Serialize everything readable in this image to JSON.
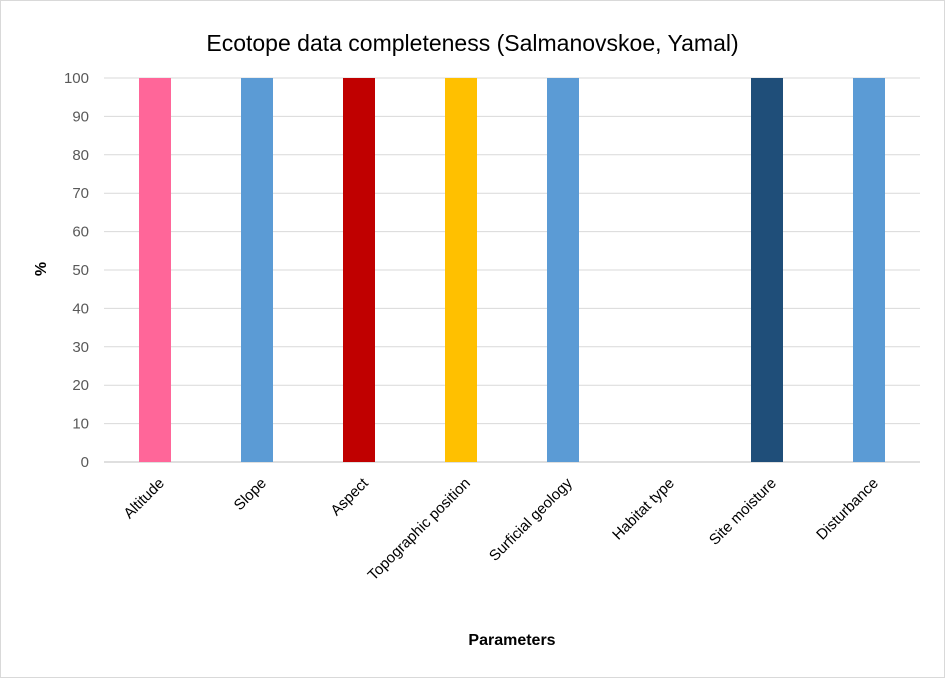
{
  "chart_data": {
    "type": "bar",
    "title": "Ecotope data completeness (Salmanovskoe, Yamal)",
    "xlabel": "Parameters",
    "ylabel": "%",
    "ylim": [
      0,
      100
    ],
    "yticks": [
      0,
      10,
      20,
      30,
      40,
      50,
      60,
      70,
      80,
      90,
      100
    ],
    "grid": true,
    "legend": "none",
    "categories": [
      "Altitude",
      "Slope",
      "Aspect",
      "Topographic position",
      "Surficial geology",
      "Habitat type",
      "Site moisture",
      "Disturbance"
    ],
    "values": [
      100,
      100,
      100,
      100,
      100,
      0,
      100,
      100
    ],
    "colors": [
      "#ff6699",
      "#5b9bd5",
      "#c00000",
      "#ffc000",
      "#5b9bd5",
      "#5b9bd5",
      "#1f4e79",
      "#5b9bd5"
    ]
  }
}
